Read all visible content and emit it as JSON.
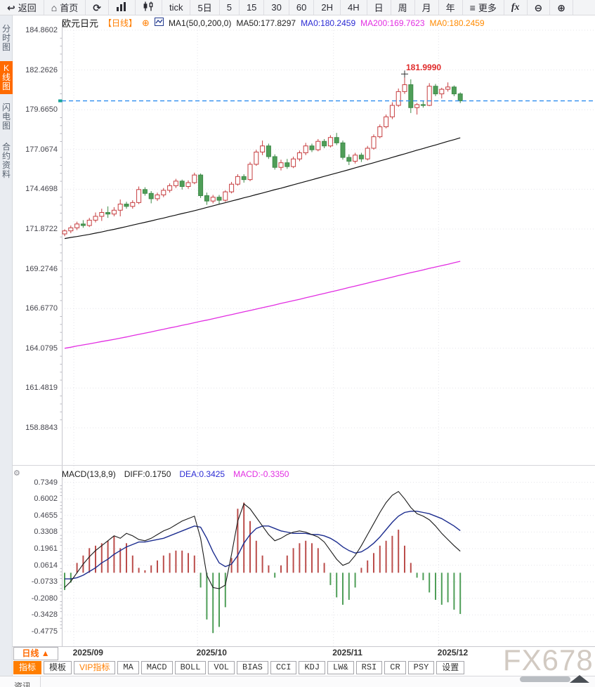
{
  "toolbar": {
    "items": [
      {
        "name": "back",
        "icon": "back-arrow",
        "label": "返回"
      },
      {
        "name": "home",
        "icon": "home",
        "label": "首页"
      },
      {
        "name": "refresh",
        "icon": "refresh"
      },
      {
        "name": "bar-chart-view",
        "icon": "bar-chart"
      },
      {
        "name": "candlestick-view",
        "icon": "candlestick"
      },
      {
        "name": "interval-tick",
        "label": "tick"
      },
      {
        "name": "interval-5day",
        "label": "5日"
      },
      {
        "name": "interval-5min",
        "label": "5"
      },
      {
        "name": "interval-15min",
        "label": "15"
      },
      {
        "name": "interval-30min",
        "label": "30"
      },
      {
        "name": "interval-60min",
        "label": "60"
      },
      {
        "name": "interval-2h",
        "label": "2H"
      },
      {
        "name": "interval-4h",
        "label": "4H"
      },
      {
        "name": "interval-day",
        "label": "日"
      },
      {
        "name": "interval-week",
        "label": "周"
      },
      {
        "name": "interval-month",
        "label": "月"
      },
      {
        "name": "interval-year",
        "label": "年"
      },
      {
        "name": "more",
        "icon": "menu",
        "label": "更多"
      },
      {
        "name": "functions",
        "icon": "fx",
        "label": "fx"
      },
      {
        "name": "zoom-out",
        "icon": "zoom-out"
      },
      {
        "name": "zoom-in",
        "icon": "zoom-in"
      }
    ]
  },
  "sidebar": {
    "items": [
      {
        "name": "time-share",
        "label": "分时图",
        "active": false
      },
      {
        "name": "kline",
        "label": "K线图",
        "active": true
      },
      {
        "name": "lightning",
        "label": "闪电图",
        "active": false
      },
      {
        "name": "contract-info",
        "label": "合约资料",
        "active": false
      }
    ]
  },
  "chart_header": {
    "symbol": "欧元日元",
    "period": "【日线】",
    "ma_settings": "MA1(50,0,200,0)",
    "ma50": "MA50:177.8297",
    "ma0_blue": "MA0:180.2459",
    "ma200": "MA200:169.7623",
    "ma0_orange": "MA0:180.2459"
  },
  "macd_header": {
    "title": "MACD(13,8,9)",
    "diff": "DIFF:0.1750",
    "dea": "DEA:0.3425",
    "macd": "MACD:-0.3350"
  },
  "period_selector": {
    "label": "日线",
    "arrow": "▲"
  },
  "bottom_tabs": [
    {
      "name": "indicators",
      "label": "指标",
      "active": true
    },
    {
      "name": "templates",
      "label": "模板"
    },
    {
      "name": "vip-indicators",
      "label": "VIP指标",
      "vip": true
    },
    {
      "name": "ma",
      "label": "MA",
      "mono": true
    },
    {
      "name": "macd",
      "label": "MACD",
      "mono": true
    },
    {
      "name": "boll",
      "label": "BOLL",
      "mono": true
    },
    {
      "name": "vol",
      "label": "VOL",
      "mono": true
    },
    {
      "name": "bias",
      "label": "BIAS",
      "mono": true
    },
    {
      "name": "cci",
      "label": "CCI",
      "mono": true
    },
    {
      "name": "kdj",
      "label": "KDJ",
      "mono": true
    },
    {
      "name": "lw",
      "label": "LW&",
      "mono": true
    },
    {
      "name": "rsi",
      "label": "RSI",
      "mono": true
    },
    {
      "name": "cr",
      "label": "CR",
      "mono": true
    },
    {
      "name": "psy",
      "label": "PSY",
      "mono": true
    },
    {
      "name": "settings",
      "label": "设置"
    }
  ],
  "watermark": "FX678",
  "bottom_partial_tab": "资讯",
  "chart_data": {
    "type": "candlestick",
    "symbol": "欧元日元",
    "period": "日线",
    "x_axis_months": [
      "2025/09",
      "2025/10",
      "2025/11",
      "2025/12"
    ],
    "month_start_indices": [
      2,
      22,
      44,
      61
    ],
    "price_axis_ticks": [
      184.8602,
      182.2626,
      179.665,
      177.0674,
      174.4698,
      171.8722,
      169.2746,
      166.677,
      164.0795,
      161.4819,
      158.8843
    ],
    "current_price": 180.2459,
    "session_high": 181.999,
    "session_high_index": 55,
    "session_high_label": "181.9990",
    "candles": [
      [
        171.55,
        171.85,
        171.4,
        171.75
      ],
      [
        171.75,
        172.1,
        171.6,
        171.95
      ],
      [
        171.95,
        172.35,
        171.8,
        172.2
      ],
      [
        172.2,
        172.45,
        171.95,
        172.1
      ],
      [
        172.1,
        172.6,
        172.0,
        172.45
      ],
      [
        172.45,
        172.95,
        172.3,
        172.7
      ],
      [
        172.7,
        173.2,
        172.4,
        172.95
      ],
      [
        172.95,
        173.35,
        172.6,
        172.85
      ],
      [
        172.85,
        173.3,
        172.7,
        173.1
      ],
      [
        173.1,
        173.8,
        172.7,
        173.5
      ],
      [
        173.5,
        173.65,
        173.2,
        173.35
      ],
      [
        173.35,
        173.75,
        173.2,
        173.6
      ],
      [
        173.6,
        174.65,
        173.5,
        174.45
      ],
      [
        174.45,
        174.6,
        174.05,
        174.2
      ],
      [
        174.2,
        174.35,
        173.55,
        173.85
      ],
      [
        173.85,
        174.25,
        173.7,
        174.1
      ],
      [
        174.1,
        174.55,
        173.95,
        174.4
      ],
      [
        174.4,
        174.85,
        174.25,
        174.7
      ],
      [
        174.7,
        175.15,
        174.55,
        175.0
      ],
      [
        175.0,
        175.1,
        174.45,
        174.65
      ],
      [
        174.65,
        175.05,
        174.5,
        174.9
      ],
      [
        174.9,
        175.55,
        174.8,
        175.4
      ],
      [
        175.4,
        175.5,
        173.9,
        174.05
      ],
      [
        174.05,
        174.25,
        173.45,
        173.7
      ],
      [
        173.7,
        174.1,
        173.55,
        173.95
      ],
      [
        173.95,
        174.1,
        173.5,
        173.75
      ],
      [
        173.75,
        174.4,
        173.65,
        174.3
      ],
      [
        174.3,
        174.95,
        174.2,
        174.8
      ],
      [
        174.8,
        175.45,
        174.7,
        175.3
      ],
      [
        175.3,
        175.45,
        174.9,
        175.1
      ],
      [
        175.1,
        176.25,
        175.0,
        176.1
      ],
      [
        176.1,
        177.05,
        176.0,
        176.9
      ],
      [
        176.9,
        177.65,
        176.7,
        177.3
      ],
      [
        177.3,
        177.45,
        176.45,
        176.6
      ],
      [
        176.6,
        176.75,
        175.75,
        175.9
      ],
      [
        175.9,
        176.4,
        175.7,
        176.2
      ],
      [
        176.2,
        176.45,
        175.8,
        175.95
      ],
      [
        175.95,
        176.6,
        175.85,
        176.45
      ],
      [
        176.45,
        177.0,
        176.3,
        176.85
      ],
      [
        176.85,
        177.5,
        176.7,
        177.3
      ],
      [
        177.3,
        177.45,
        176.9,
        177.05
      ],
      [
        177.05,
        177.75,
        176.95,
        177.6
      ],
      [
        177.6,
        177.75,
        177.15,
        177.3
      ],
      [
        177.3,
        178.0,
        177.2,
        177.85
      ],
      [
        177.85,
        178.15,
        177.35,
        177.5
      ],
      [
        177.5,
        177.65,
        176.4,
        176.55
      ],
      [
        176.55,
        176.75,
        176.05,
        176.3
      ],
      [
        176.3,
        176.85,
        176.15,
        176.7
      ],
      [
        176.7,
        176.85,
        176.25,
        176.45
      ],
      [
        176.45,
        177.3,
        176.35,
        177.15
      ],
      [
        177.15,
        178.05,
        177.05,
        177.9
      ],
      [
        177.9,
        178.7,
        177.8,
        178.55
      ],
      [
        178.55,
        179.35,
        178.45,
        179.2
      ],
      [
        179.2,
        180.15,
        179.05,
        179.95
      ],
      [
        179.95,
        181.05,
        179.85,
        180.85
      ],
      [
        180.85,
        181.999,
        180.7,
        181.3
      ],
      [
        181.3,
        181.65,
        179.45,
        179.8
      ],
      [
        179.8,
        180.1,
        179.35,
        180.0
      ],
      [
        180.0,
        180.25,
        179.8,
        179.95
      ],
      [
        179.95,
        181.4,
        179.9,
        181.2
      ],
      [
        181.2,
        181.35,
        180.55,
        180.7
      ],
      [
        180.7,
        181.1,
        180.4,
        181.0
      ],
      [
        181.0,
        181.45,
        180.85,
        181.15
      ],
      [
        181.15,
        181.25,
        180.55,
        180.7
      ],
      [
        180.7,
        180.8,
        180.1,
        180.2459
      ]
    ],
    "ma50": [
      171.25,
      171.32,
      171.38,
      171.45,
      171.52,
      171.6,
      171.68,
      171.77,
      171.85,
      171.94,
      172.03,
      172.13,
      172.22,
      172.31,
      172.4,
      172.5,
      172.59,
      172.69,
      172.78,
      172.88,
      172.97,
      173.07,
      173.17,
      173.28,
      173.38,
      173.49,
      173.59,
      173.7,
      173.8,
      173.91,
      174.01,
      174.12,
      174.22,
      174.33,
      174.44,
      174.54,
      174.65,
      174.76,
      174.87,
      174.98,
      175.09,
      175.2,
      175.31,
      175.42,
      175.53,
      175.64,
      175.75,
      175.87,
      175.98,
      176.09,
      176.2,
      176.32,
      176.43,
      176.55,
      176.67,
      176.78,
      176.9,
      177.02,
      177.13,
      177.25,
      177.36,
      177.48,
      177.6,
      177.71,
      177.83
    ],
    "ma200": [
      164.08,
      164.15,
      164.23,
      164.3,
      164.37,
      164.44,
      164.52,
      164.59,
      164.66,
      164.74,
      164.82,
      164.91,
      164.99,
      165.07,
      165.15,
      165.24,
      165.32,
      165.41,
      165.49,
      165.58,
      165.66,
      165.75,
      165.84,
      165.92,
      166.01,
      166.1,
      166.19,
      166.28,
      166.37,
      166.46,
      166.55,
      166.64,
      166.73,
      166.82,
      166.91,
      167.01,
      167.1,
      167.19,
      167.28,
      167.38,
      167.47,
      167.57,
      167.66,
      167.76,
      167.85,
      167.95,
      168.05,
      168.14,
      168.24,
      168.34,
      168.44,
      168.53,
      168.63,
      168.73,
      168.83,
      168.92,
      169.02,
      169.11,
      169.2,
      169.3,
      169.39,
      169.48,
      169.57,
      169.67,
      169.76
    ],
    "macd": {
      "params": "13,8,9",
      "axis_ticks": [
        0.7349,
        0.6002,
        0.4655,
        0.3308,
        0.1961,
        0.0614,
        -0.0733,
        -0.208,
        -0.3428,
        -0.4775
      ],
      "diff": [
        -0.12,
        -0.07,
        0.0,
        0.07,
        0.13,
        0.18,
        0.22,
        0.26,
        0.3,
        0.28,
        0.32,
        0.3,
        0.27,
        0.26,
        0.28,
        0.31,
        0.34,
        0.36,
        0.39,
        0.42,
        0.44,
        0.46,
        0.28,
        -0.02,
        -0.12,
        -0.13,
        -0.1,
        0.15,
        0.42,
        0.56,
        0.52,
        0.45,
        0.38,
        0.31,
        0.26,
        0.28,
        0.31,
        0.33,
        0.34,
        0.33,
        0.31,
        0.29,
        0.25,
        0.18,
        0.11,
        0.06,
        0.08,
        0.14,
        0.22,
        0.31,
        0.4,
        0.49,
        0.57,
        0.63,
        0.66,
        0.6,
        0.53,
        0.48,
        0.46,
        0.43,
        0.38,
        0.32,
        0.27,
        0.22,
        0.175
      ],
      "dea": [
        -0.05,
        -0.05,
        -0.04,
        -0.02,
        0.01,
        0.04,
        0.08,
        0.11,
        0.15,
        0.18,
        0.21,
        0.23,
        0.25,
        0.25,
        0.26,
        0.27,
        0.28,
        0.3,
        0.32,
        0.34,
        0.36,
        0.38,
        0.37,
        0.28,
        0.17,
        0.08,
        0.05,
        0.07,
        0.14,
        0.24,
        0.31,
        0.36,
        0.38,
        0.38,
        0.36,
        0.34,
        0.33,
        0.32,
        0.32,
        0.32,
        0.31,
        0.31,
        0.3,
        0.28,
        0.25,
        0.21,
        0.18,
        0.16,
        0.17,
        0.2,
        0.24,
        0.29,
        0.35,
        0.41,
        0.46,
        0.49,
        0.5,
        0.5,
        0.49,
        0.48,
        0.46,
        0.44,
        0.41,
        0.38,
        0.3425
      ],
      "hist": [
        -0.14,
        -0.08,
        0.08,
        0.14,
        0.2,
        0.22,
        0.24,
        0.26,
        0.3,
        0.2,
        0.24,
        0.14,
        0.04,
        0.02,
        0.06,
        0.1,
        0.14,
        0.16,
        0.18,
        0.18,
        0.16,
        0.14,
        -0.12,
        -0.38,
        -0.49,
        -0.44,
        -0.28,
        0.12,
        0.52,
        0.57,
        0.42,
        0.26,
        0.14,
        0.06,
        -0.04,
        0.06,
        0.14,
        0.2,
        0.24,
        0.26,
        0.24,
        0.2,
        0.08,
        -0.1,
        -0.2,
        -0.26,
        -0.22,
        -0.12,
        0.04,
        0.1,
        0.16,
        0.22,
        0.26,
        0.3,
        0.35,
        0.22,
        0.08,
        -0.04,
        -0.06,
        -0.16,
        -0.22,
        -0.26,
        -0.24,
        -0.3,
        -0.335
      ]
    },
    "colors": {
      "up": "#c63d3f",
      "down": "#4f9e58",
      "down_stroke": "#3e8a48",
      "ma50": "#111111",
      "ma200": "#e22ee2",
      "diff": "#1a1a1a",
      "dea": "#1c2d8f",
      "macd_up": "#bb4d4b",
      "macd_down": "#4f9e58",
      "current_price_line": "#2e8ef0",
      "current_price_tick": "#18a39a",
      "high_label": "#e02b2b"
    }
  }
}
